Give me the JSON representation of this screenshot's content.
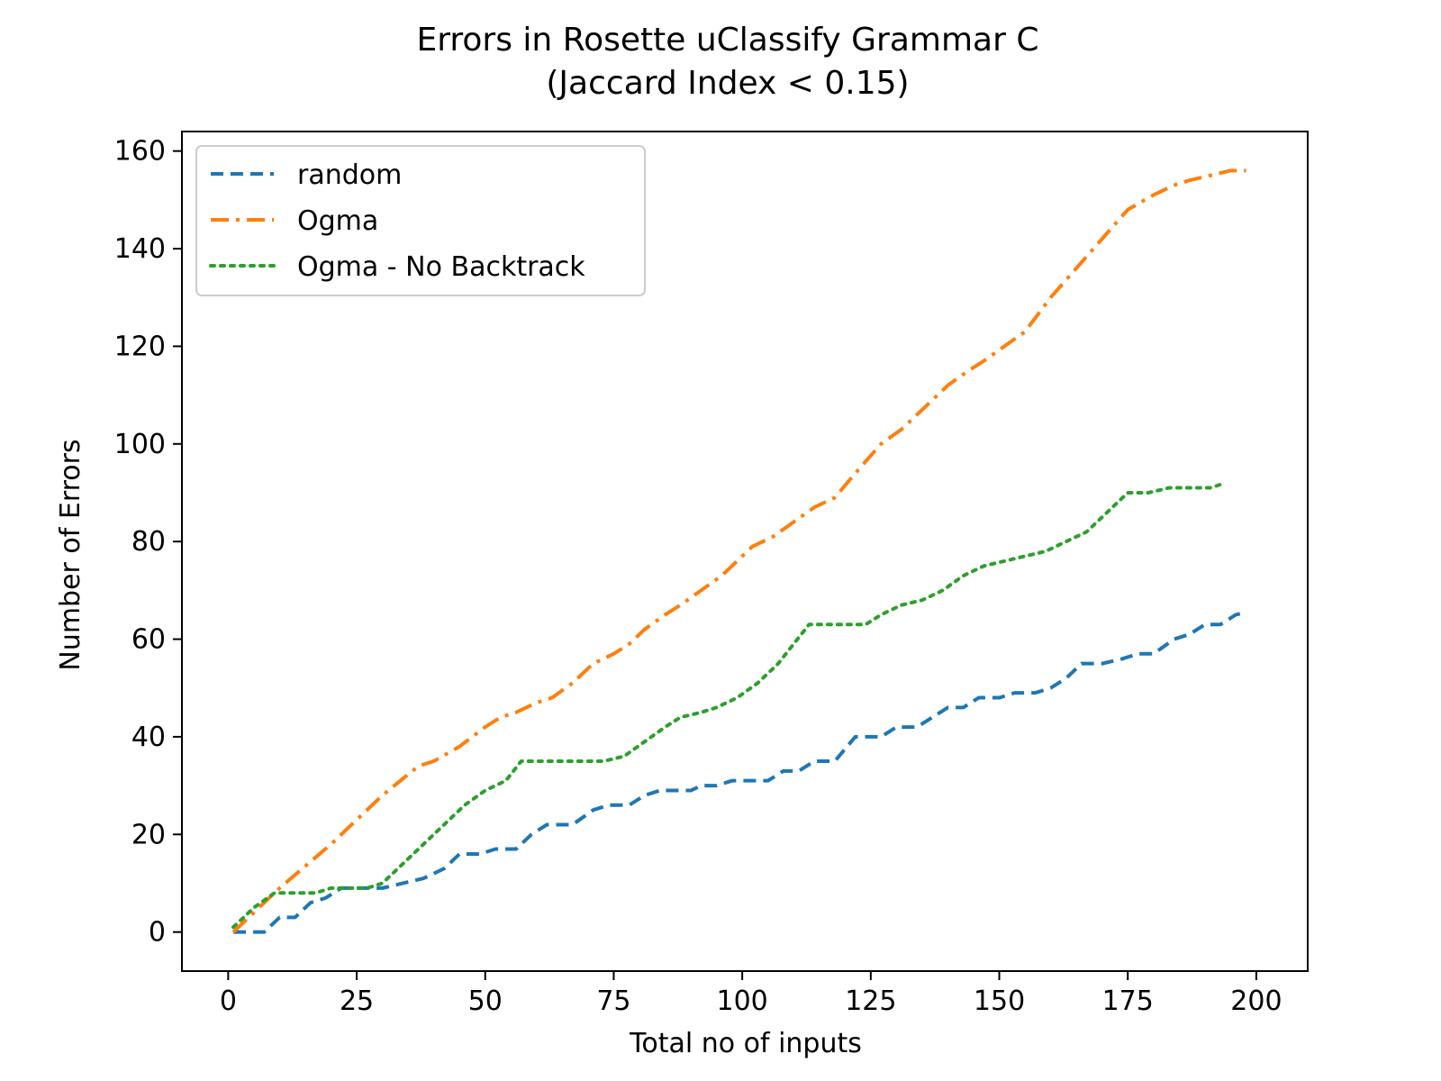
{
  "chart_data": {
    "type": "line",
    "title_line1": "Errors in Rosette uClassify Grammar C",
    "title_line2": "(Jaccard Index < 0.15)",
    "xlabel": "Total no of inputs",
    "ylabel": "Number of Errors",
    "xlim": [
      -9,
      210
    ],
    "ylim": [
      -8,
      164
    ],
    "xticks": [
      0,
      25,
      50,
      75,
      100,
      125,
      150,
      175,
      200
    ],
    "yticks": [
      0,
      20,
      40,
      60,
      80,
      100,
      120,
      140,
      160
    ],
    "xtick_labels": [
      "0",
      "25",
      "50",
      "75",
      "100",
      "125",
      "150",
      "175",
      "200"
    ],
    "ytick_labels": [
      "0",
      "20",
      "40",
      "60",
      "80",
      "100",
      "120",
      "140",
      "160"
    ],
    "grid": false,
    "legend_position": "upper left",
    "series": [
      {
        "name": "random",
        "color": "#1f77b4",
        "style": "dashed",
        "x": [
          1,
          7,
          10,
          13,
          16,
          19,
          22,
          27,
          30,
          34,
          38,
          42,
          45,
          49,
          52,
          56,
          59,
          62,
          67,
          71,
          74,
          78,
          81,
          84,
          90,
          92,
          95,
          98,
          101,
          105,
          108,
          111,
          114,
          118,
          122,
          127,
          130,
          134,
          137,
          140,
          143,
          146,
          150,
          153,
          157,
          160,
          163,
          166,
          170,
          174,
          177,
          180,
          184,
          187,
          190,
          193,
          196,
          198
        ],
        "y": [
          0,
          0,
          3,
          3,
          6,
          7,
          9,
          9,
          9,
          10,
          11,
          13,
          16,
          16,
          17,
          17,
          20,
          22,
          22,
          25,
          26,
          26,
          28,
          29,
          29,
          30,
          30,
          31,
          31,
          31,
          33,
          33,
          35,
          35,
          40,
          40,
          42,
          42,
          44,
          46,
          46,
          48,
          48,
          49,
          49,
          50,
          52,
          55,
          55,
          56,
          57,
          57,
          60,
          61,
          63,
          63,
          65,
          65.5
        ]
      },
      {
        "name": "Ogma",
        "color": "#ff7f0e",
        "style": "dashdot",
        "x": [
          1,
          10,
          20,
          30,
          37,
          40,
          45,
          50,
          53,
          56,
          60,
          63,
          67,
          71,
          75,
          78,
          81,
          85,
          88,
          92,
          96,
          102,
          106,
          110,
          114,
          118,
          122,
          127,
          131,
          136,
          140,
          144,
          147,
          151,
          155,
          160,
          165,
          170,
          175,
          180,
          184,
          187,
          191,
          195,
          198
        ],
        "y": [
          0,
          9,
          18,
          28,
          34,
          35,
          38,
          42,
          44,
          45,
          47,
          48,
          51,
          55,
          57,
          59,
          62,
          65,
          67,
          70,
          73,
          79,
          81,
          84,
          87,
          89,
          94,
          100,
          103,
          108,
          112,
          115,
          117,
          120,
          123,
          130,
          136,
          142,
          148,
          151,
          153,
          154,
          155,
          156,
          156
        ]
      },
      {
        "name": "Ogma - No Backtrack",
        "color": "#2ca02c",
        "style": "dotted",
        "x": [
          1,
          5,
          9,
          13,
          17,
          20,
          24,
          27,
          30,
          34,
          38,
          42,
          46,
          50,
          54,
          57,
          62,
          67,
          70,
          73,
          77,
          81,
          85,
          88,
          92,
          95,
          99,
          103,
          107,
          110,
          113,
          117,
          120,
          124,
          127,
          131,
          135,
          139,
          143,
          147,
          151,
          155,
          159,
          163,
          167,
          171,
          175,
          179,
          183,
          187,
          191,
          194
        ],
        "y": [
          1,
          5,
          8,
          8,
          8,
          9,
          9,
          9,
          10,
          14,
          18,
          22,
          26,
          29,
          31,
          35,
          35,
          35,
          35,
          35,
          36,
          39,
          42,
          44,
          45,
          46,
          48,
          51,
          55,
          59,
          63,
          63,
          63,
          63,
          65,
          67,
          68,
          70,
          73,
          75,
          76,
          77,
          78,
          80,
          82,
          86,
          90,
          90,
          91,
          91,
          91,
          92
        ]
      }
    ]
  }
}
